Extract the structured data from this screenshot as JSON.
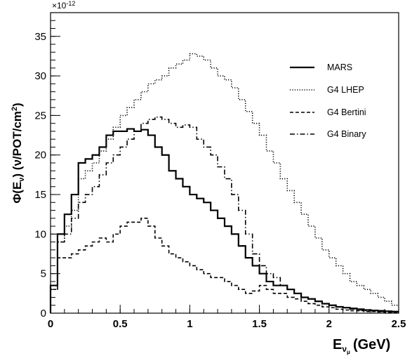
{
  "chart_data": {
    "type": "line",
    "style": "step-histogram",
    "title": "",
    "xlabel": "E",
    "xlabel_sub": "ν",
    "xlabel_subsub": "μ",
    "xlabel_unit": "(GeV)",
    "ylabel_main": "Φ(E",
    "ylabel_sub": "ν",
    "ylabel_unit": ") (ν/POT/cm",
    "ylabel_sup": "2",
    "ylabel_close": ")",
    "y_exponent_base": "×10",
    "y_exponent_power": "-12",
    "xlim": [
      0,
      2.5
    ],
    "ylim": [
      0,
      38
    ],
    "x_ticks": [
      {
        "v": 0,
        "label": "0"
      },
      {
        "v": 0.5,
        "label": "0.5"
      },
      {
        "v": 1,
        "label": "1"
      },
      {
        "v": 1.5,
        "label": "1.5"
      },
      {
        "v": 2,
        "label": "2"
      },
      {
        "v": 2.5,
        "label": "2.5"
      }
    ],
    "y_ticks": [
      {
        "v": 0,
        "label": "0"
      },
      {
        "v": 5,
        "label": "5"
      },
      {
        "v": 10,
        "label": "10"
      },
      {
        "v": 15,
        "label": "15"
      },
      {
        "v": 20,
        "label": "20"
      },
      {
        "v": 25,
        "label": "25"
      },
      {
        "v": 30,
        "label": "30"
      },
      {
        "v": 35,
        "label": "35"
      }
    ],
    "bin_width": 0.05,
    "grid": false,
    "legend_position": "top-right",
    "series": [
      {
        "name": "MARS",
        "dash": "solid",
        "values": [
          3.5,
          10,
          12.5,
          15,
          19,
          19.5,
          20,
          21,
          22.5,
          23,
          23,
          23.3,
          23,
          23.2,
          22.5,
          21,
          20,
          18,
          17,
          16,
          15,
          14.5,
          14,
          13,
          12,
          11,
          10,
          8.5,
          7,
          6,
          5,
          4,
          3.5,
          3.5,
          3,
          2.5,
          2,
          1.8,
          1.5,
          1.2,
          1,
          0.8,
          0.7,
          0.6,
          0.5,
          0.4,
          0.35,
          0.3,
          0.25,
          0.2
        ]
      },
      {
        "name": "G4 LHEP",
        "dash": "dotted",
        "values": [
          3,
          9,
          11,
          13,
          17,
          18,
          19,
          20.5,
          22,
          23.5,
          25,
          26,
          27,
          28,
          29,
          29.5,
          30,
          31,
          31.5,
          32,
          32.8,
          32.5,
          32,
          31,
          30,
          29.5,
          28.5,
          27,
          25.5,
          24,
          22.5,
          20.5,
          19,
          17,
          15.5,
          14,
          12.5,
          11,
          9.5,
          8,
          7,
          6,
          5,
          4,
          3.5,
          3,
          2.5,
          2,
          1.5,
          1
        ]
      },
      {
        "name": "G4 Bertini",
        "dash": "dashed",
        "values": [
          3.5,
          7,
          7,
          7.5,
          8,
          8.5,
          9,
          9.5,
          9,
          10,
          11,
          11.5,
          11.5,
          12,
          11,
          9.5,
          8.5,
          7.5,
          7,
          6.5,
          6,
          5.5,
          5,
          4.5,
          4.5,
          4,
          3.5,
          3,
          2.5,
          2.8,
          3.5,
          3,
          2.5,
          2.5,
          2,
          1.8,
          1.5,
          1.2,
          1,
          0.8,
          0.7,
          0.5,
          0.4,
          0.3,
          0.3,
          0.2,
          0.2,
          0.15,
          0.1,
          0.1
        ]
      },
      {
        "name": "G4 Binary",
        "dash": "dashdot",
        "values": [
          3,
          9,
          10,
          12,
          14,
          15,
          16,
          17.5,
          19,
          20,
          21,
          22,
          23,
          24,
          24.5,
          24.8,
          24.5,
          24,
          23.5,
          23.8,
          23.5,
          22,
          21,
          20,
          18.5,
          17,
          15,
          13,
          10,
          7.5,
          6,
          5,
          4.5,
          3.5,
          3,
          2.5,
          2,
          1.8,
          1.5,
          1.2,
          1,
          0.8,
          0.7,
          0.5,
          0.4,
          0.3,
          0.3,
          0.2,
          0.2,
          0.15
        ]
      }
    ]
  }
}
